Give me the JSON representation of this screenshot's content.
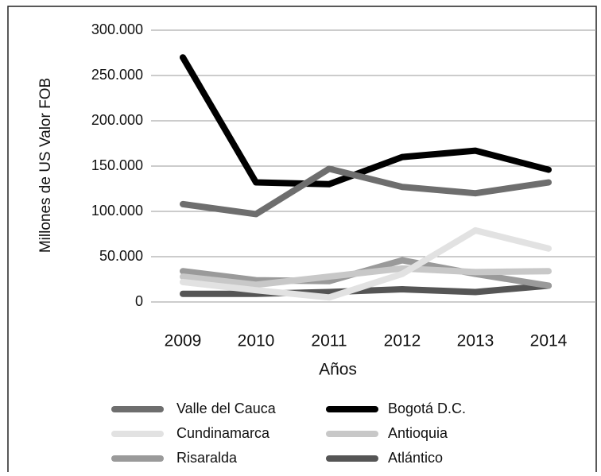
{
  "chart_data": {
    "type": "line",
    "x_label": "Años",
    "y_label": "Millones de US Valor  FOB",
    "categories": [
      "2009",
      "2010",
      "2011",
      "2012",
      "2013",
      "2014"
    ],
    "series": [
      {
        "name": "Valle del Cauca",
        "color": "#6e6e6e",
        "values": [
          108000,
          97000,
          147000,
          127000,
          120000,
          132000
        ]
      },
      {
        "name": "Bogotá D.C.",
        "color": "#000000",
        "values": [
          270000,
          132000,
          130000,
          160000,
          167000,
          146000
        ]
      },
      {
        "name": "Cundinamarca",
        "color": "#e2e2e2",
        "values": [
          22000,
          13000,
          5000,
          31000,
          79000,
          59000
        ]
      },
      {
        "name": "Antioquia",
        "color": "#c8c8c8",
        "values": [
          28000,
          19000,
          28000,
          37000,
          33000,
          34000
        ]
      },
      {
        "name": "Risaralda",
        "color": "#9a9a9a",
        "values": [
          34000,
          24000,
          23000,
          46000,
          31000,
          18000
        ]
      },
      {
        "name": "Atlántico",
        "color": "#555555",
        "values": [
          9000,
          9000,
          11000,
          14000,
          11000,
          18000
        ]
      }
    ],
    "ylim": [
      0,
      300000
    ],
    "yticks": [
      0,
      {
        "value": 50000,
        "label": "50.000"
      },
      {
        "value": 100000,
        "label": "100.000"
      },
      {
        "value": 150000,
        "label": "150.000"
      },
      {
        "value": 200000,
        "label": "200.000"
      },
      {
        "value": 250000,
        "label": "250.000"
      },
      {
        "value": 300000,
        "label": "300.000"
      }
    ],
    "grid": true
  }
}
